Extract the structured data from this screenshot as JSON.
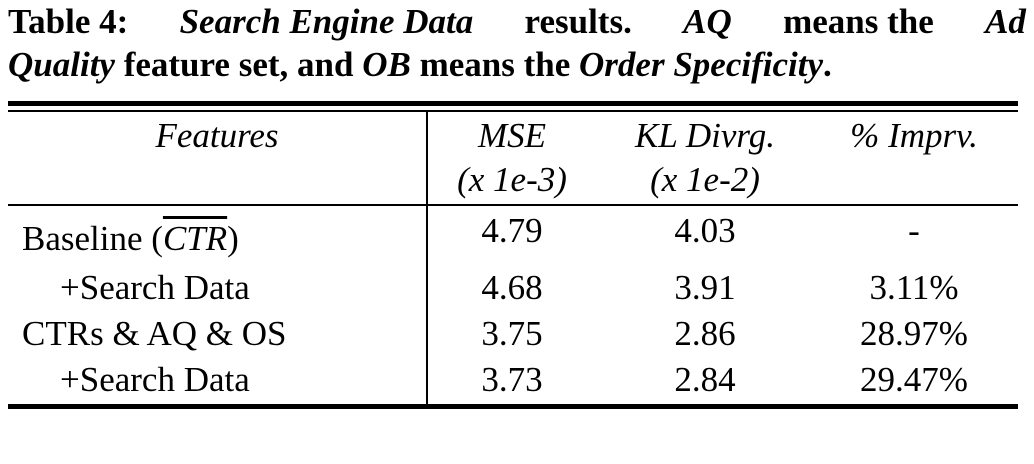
{
  "caption": {
    "label": "Table 4:",
    "dataset": "Search Engine Data",
    "results_word": "results.",
    "aq_abbr": "AQ",
    "means_the_1": "means the",
    "ad_word": "Ad",
    "quality_word": "Quality",
    "feature_set_text": "feature set, and",
    "ob_abbr": "OB",
    "means_the_2": "means the",
    "order_spec": "Order Specificity",
    "period": "."
  },
  "table": {
    "headers": {
      "features": "Features",
      "mse": "MSE",
      "mse_unit": "(x 1e-3)",
      "kl": "KL Divrg.",
      "kl_unit": "(x 1e-2)",
      "impr": "% Imprv."
    },
    "rows": [
      {
        "prefix": "Baseline (",
        "overline": "CTR",
        "suffix": ")",
        "mse": "4.79",
        "kl": "4.03",
        "impr": "-"
      },
      {
        "label": "+Search Data",
        "mse": "4.68",
        "kl": "3.91",
        "impr": "3.11%"
      },
      {
        "label": "CTRs & AQ & OS",
        "mse": "3.75",
        "kl": "2.86",
        "impr": "28.97%"
      },
      {
        "label": "+Search Data",
        "mse": "3.73",
        "kl": "2.84",
        "impr": "29.47%"
      }
    ]
  }
}
